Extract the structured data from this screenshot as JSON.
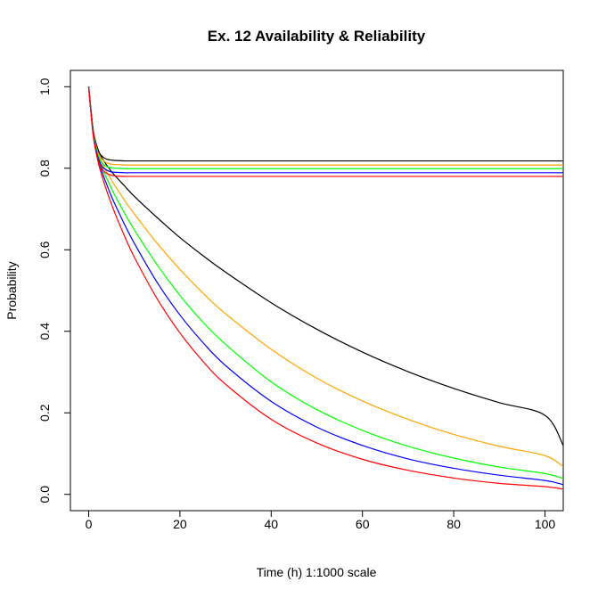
{
  "chart_data": {
    "type": "line",
    "title": "Ex. 12 Availability & Reliability",
    "xlabel": "Time (h) 1:1000 scale",
    "ylabel": "Probability",
    "xlim": [
      -4,
      104
    ],
    "ylim": [
      -0.04,
      1.04
    ],
    "xticks": [
      0,
      20,
      40,
      60,
      80,
      100
    ],
    "yticks": [
      0.0,
      0.2,
      0.4,
      0.6,
      0.8,
      1.0
    ],
    "xtick_labels": [
      "0",
      "20",
      "40",
      "60",
      "80",
      "100"
    ],
    "ytick_labels": [
      "0.0",
      "0.2",
      "0.4",
      "0.6",
      "0.8",
      "1.0"
    ],
    "grid": false,
    "legend": "none",
    "series": [
      {
        "group": "availability",
        "color": "#000000",
        "x": [
          0,
          1,
          2,
          3,
          4,
          5,
          6,
          8,
          10,
          15,
          20,
          30,
          40,
          50,
          60,
          70,
          80,
          90,
          100,
          104
        ],
        "y": [
          1.0,
          0.893,
          0.845,
          0.829,
          0.822,
          0.82,
          0.819,
          0.818,
          0.818,
          0.818,
          0.818,
          0.818,
          0.818,
          0.818,
          0.818,
          0.818,
          0.818,
          0.818,
          0.818,
          0.818
        ]
      },
      {
        "group": "availability",
        "color": "#ffa500",
        "x": [
          0,
          1,
          2,
          3,
          4,
          5,
          6,
          8,
          10,
          15,
          20,
          30,
          40,
          50,
          60,
          70,
          80,
          90,
          100,
          104
        ],
        "y": [
          1.0,
          0.89,
          0.84,
          0.821,
          0.813,
          0.81,
          0.809,
          0.808,
          0.808,
          0.808,
          0.808,
          0.808,
          0.808,
          0.808,
          0.808,
          0.808,
          0.808,
          0.808,
          0.808,
          0.808
        ]
      },
      {
        "group": "availability",
        "color": "#00ff00",
        "x": [
          0,
          1,
          2,
          3,
          4,
          5,
          6,
          8,
          10,
          15,
          20,
          30,
          40,
          50,
          60,
          70,
          80,
          90,
          100,
          104
        ],
        "y": [
          1.0,
          0.887,
          0.834,
          0.812,
          0.804,
          0.801,
          0.8,
          0.799,
          0.799,
          0.799,
          0.799,
          0.799,
          0.799,
          0.799,
          0.799,
          0.799,
          0.799,
          0.799,
          0.799,
          0.799
        ]
      },
      {
        "group": "availability",
        "color": "#0000ff",
        "x": [
          0,
          1,
          2,
          3,
          4,
          5,
          6,
          8,
          10,
          15,
          20,
          30,
          40,
          50,
          60,
          70,
          80,
          90,
          100,
          104
        ],
        "y": [
          1.0,
          0.884,
          0.828,
          0.804,
          0.795,
          0.791,
          0.79,
          0.789,
          0.789,
          0.789,
          0.789,
          0.789,
          0.789,
          0.789,
          0.789,
          0.789,
          0.789,
          0.789,
          0.789,
          0.789
        ]
      },
      {
        "group": "availability",
        "color": "#ff0000",
        "x": [
          0,
          1,
          2,
          3,
          4,
          5,
          6,
          8,
          10,
          15,
          20,
          30,
          40,
          50,
          60,
          70,
          80,
          90,
          100,
          104
        ],
        "y": [
          1.0,
          0.88,
          0.822,
          0.797,
          0.787,
          0.783,
          0.781,
          0.78,
          0.78,
          0.78,
          0.78,
          0.78,
          0.78,
          0.78,
          0.78,
          0.78,
          0.78,
          0.78,
          0.78,
          0.78
        ]
      },
      {
        "group": "reliability",
        "color": "#000000",
        "x": [
          0,
          1,
          2,
          3,
          4,
          5,
          6,
          8,
          10,
          15,
          20,
          25,
          30,
          40,
          50,
          60,
          70,
          80,
          90,
          100,
          104
        ],
        "y": [
          1.0,
          0.894,
          0.848,
          0.824,
          0.807,
          0.792,
          0.779,
          0.755,
          0.731,
          0.679,
          0.63,
          0.586,
          0.545,
          0.47,
          0.405,
          0.349,
          0.301,
          0.26,
          0.225,
          0.194,
          0.12
        ]
      },
      {
        "group": "reliability",
        "color": "#ffa500",
        "x": [
          0,
          1,
          2,
          3,
          4,
          5,
          6,
          8,
          10,
          15,
          20,
          25,
          30,
          40,
          50,
          60,
          70,
          80,
          90,
          100,
          104
        ],
        "y": [
          1.0,
          0.891,
          0.84,
          0.812,
          0.79,
          0.771,
          0.753,
          0.719,
          0.688,
          0.616,
          0.552,
          0.494,
          0.443,
          0.356,
          0.285,
          0.229,
          0.184,
          0.147,
          0.118,
          0.095,
          0.068
        ]
      },
      {
        "group": "reliability",
        "color": "#00ff00",
        "x": [
          0,
          1,
          2,
          3,
          4,
          5,
          6,
          8,
          10,
          15,
          20,
          25,
          30,
          40,
          50,
          60,
          70,
          80,
          90,
          100,
          104
        ],
        "y": [
          1.0,
          0.888,
          0.833,
          0.8,
          0.774,
          0.75,
          0.728,
          0.687,
          0.649,
          0.563,
          0.488,
          0.423,
          0.368,
          0.276,
          0.208,
          0.157,
          0.118,
          0.089,
          0.067,
          0.051,
          0.039
        ]
      },
      {
        "group": "reliability",
        "color": "#0000ff",
        "x": [
          0,
          1,
          2,
          3,
          4,
          5,
          6,
          8,
          10,
          15,
          20,
          25,
          30,
          40,
          50,
          60,
          70,
          80,
          90,
          100,
          104
        ],
        "y": [
          1.0,
          0.885,
          0.826,
          0.789,
          0.759,
          0.731,
          0.706,
          0.659,
          0.616,
          0.52,
          0.44,
          0.373,
          0.316,
          0.228,
          0.165,
          0.12,
          0.087,
          0.064,
          0.047,
          0.034,
          0.024
        ]
      },
      {
        "group": "reliability",
        "color": "#ff0000",
        "x": [
          0,
          1,
          2,
          3,
          4,
          5,
          6,
          8,
          10,
          15,
          20,
          25,
          30,
          40,
          50,
          60,
          70,
          80,
          90,
          100,
          104
        ],
        "y": [
          1.0,
          0.882,
          0.819,
          0.778,
          0.743,
          0.712,
          0.683,
          0.63,
          0.582,
          0.48,
          0.396,
          0.327,
          0.27,
          0.184,
          0.126,
          0.086,
          0.059,
          0.04,
          0.027,
          0.019,
          0.013
        ]
      }
    ]
  }
}
